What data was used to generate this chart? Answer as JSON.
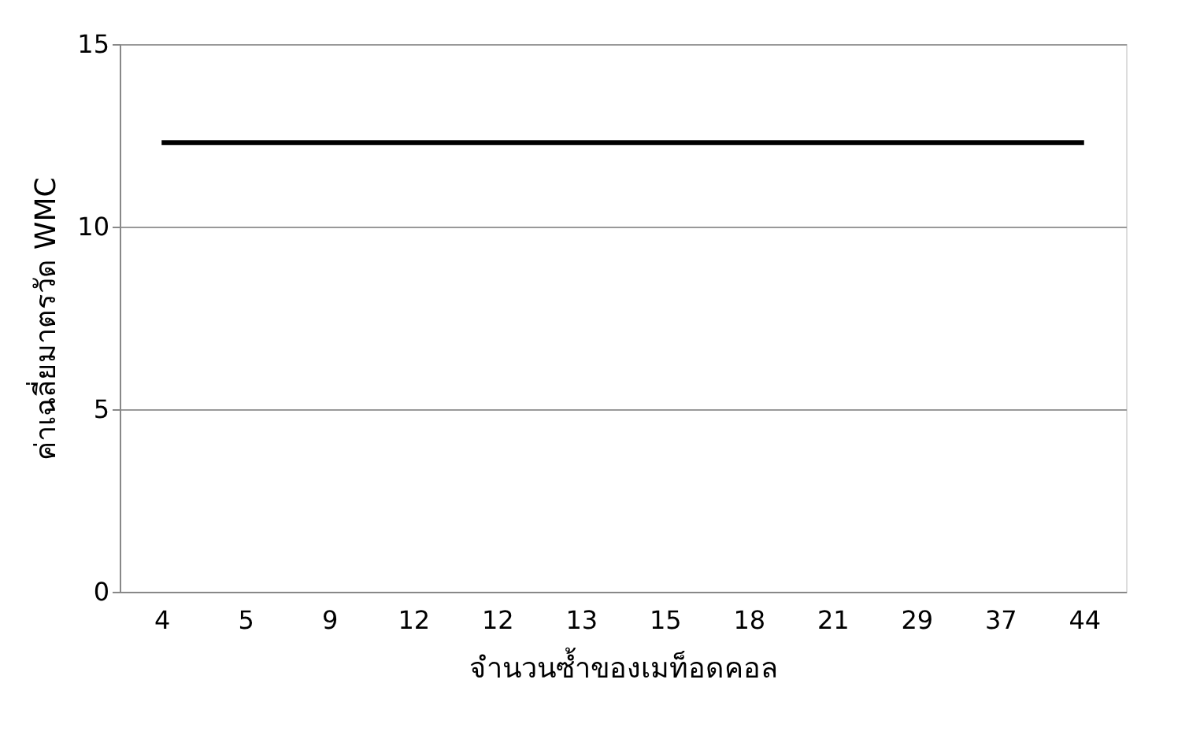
{
  "chart_data": {
    "type": "line",
    "xlabel": "จำนวนซ้ำของเมท็อดคอล",
    "ylabel": "ค่าเฉลี่ยมาตรวัด WMC",
    "categories": [
      "4",
      "5",
      "9",
      "12",
      "12",
      "13",
      "15",
      "18",
      "21",
      "29",
      "37",
      "44"
    ],
    "series": [
      {
        "color": "#000000",
        "values": [
          12.3,
          12.3,
          12.3,
          12.3,
          12.3,
          12.3,
          12.3,
          12.3,
          12.3,
          12.3,
          12.3,
          12.3
        ]
      }
    ],
    "ylim": [
      0,
      15
    ],
    "yticks": [
      0,
      5,
      10,
      15
    ],
    "grid": "y",
    "legend": false,
    "marker": "none",
    "line_style": "solid"
  }
}
